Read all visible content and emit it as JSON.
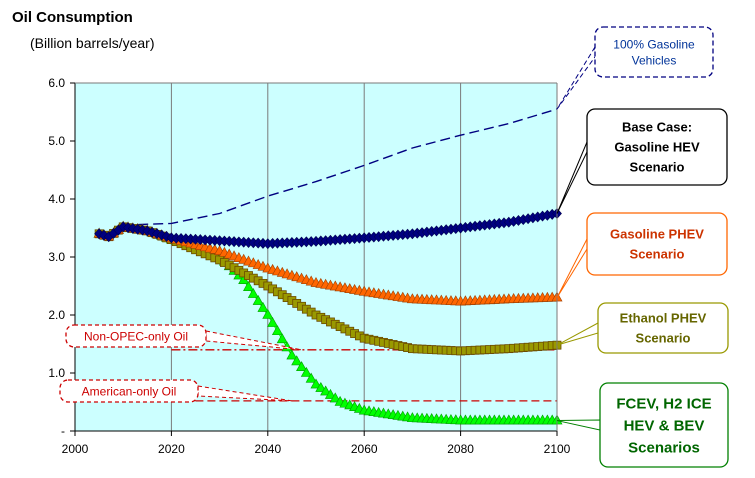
{
  "chart_data": {
    "type": "line",
    "title": "Oil Consumption",
    "subtitle": "(Billion barrels/year)",
    "xlabel": "",
    "ylabel": "",
    "xlim": [
      2000,
      2100
    ],
    "ylim": [
      0,
      6
    ],
    "x_ticks": [
      "2000",
      "2020",
      "2040",
      "2060",
      "2080",
      "2100"
    ],
    "y_ticks": [
      {
        "v": 0,
        "label": "-"
      },
      {
        "v": 1,
        "label": "1.0"
      },
      {
        "v": 2,
        "label": "2.0"
      },
      {
        "v": 3,
        "label": "3.0"
      },
      {
        "v": 4,
        "label": "4.0"
      },
      {
        "v": 5,
        "label": "5.0"
      },
      {
        "v": 6,
        "label": "6.0"
      }
    ],
    "plot_background": "#ccffff",
    "grid": "vertical",
    "series": [
      {
        "id": "gasoline",
        "label_lines": [
          "100% Gasoline",
          "Vehicles"
        ],
        "color": "#000080",
        "style": "dashed",
        "points": [
          [
            2010,
            3.55
          ],
          [
            2020,
            3.58
          ],
          [
            2030,
            3.75
          ],
          [
            2040,
            4.05
          ],
          [
            2050,
            4.3
          ],
          [
            2060,
            4.58
          ],
          [
            2070,
            4.88
          ],
          [
            2080,
            5.1
          ],
          [
            2090,
            5.3
          ],
          [
            2100,
            5.55
          ]
        ]
      },
      {
        "id": "base",
        "label_lines": [
          "Base Case:",
          "Gasoline HEV",
          "Scenario"
        ],
        "color": "#000080",
        "marker": "diamond",
        "points": [
          [
            2005,
            3.4
          ],
          [
            2007,
            3.35
          ],
          [
            2010,
            3.52
          ],
          [
            2015,
            3.45
          ],
          [
            2020,
            3.33
          ],
          [
            2030,
            3.28
          ],
          [
            2040,
            3.23
          ],
          [
            2050,
            3.27
          ],
          [
            2060,
            3.33
          ],
          [
            2070,
            3.4
          ],
          [
            2080,
            3.5
          ],
          [
            2090,
            3.6
          ],
          [
            2100,
            3.75
          ]
        ]
      },
      {
        "id": "phev",
        "label_lines": [
          "Gasoline PHEV",
          "Scenario"
        ],
        "color": "#ff6600",
        "marker": "triangle",
        "points": [
          [
            2005,
            3.4
          ],
          [
            2007,
            3.35
          ],
          [
            2010,
            3.52
          ],
          [
            2015,
            3.45
          ],
          [
            2020,
            3.32
          ],
          [
            2030,
            3.1
          ],
          [
            2040,
            2.8
          ],
          [
            2050,
            2.55
          ],
          [
            2060,
            2.4
          ],
          [
            2070,
            2.27
          ],
          [
            2080,
            2.23
          ],
          [
            2090,
            2.27
          ],
          [
            2100,
            2.3
          ]
        ]
      },
      {
        "id": "ethanol",
        "label_lines": [
          "Ethanol PHEV",
          "Scenario"
        ],
        "color": "#999900",
        "marker": "square",
        "points": [
          [
            2005,
            3.4
          ],
          [
            2007,
            3.35
          ],
          [
            2010,
            3.52
          ],
          [
            2015,
            3.45
          ],
          [
            2020,
            3.3
          ],
          [
            2030,
            2.95
          ],
          [
            2040,
            2.5
          ],
          [
            2050,
            2.0
          ],
          [
            2060,
            1.6
          ],
          [
            2070,
            1.42
          ],
          [
            2080,
            1.38
          ],
          [
            2090,
            1.42
          ],
          [
            2100,
            1.48
          ]
        ]
      },
      {
        "id": "fcev",
        "label_lines": [
          "FCEV, H2 ICE",
          "HEV & BEV",
          "Scenarios"
        ],
        "color": "#00ff00",
        "marker": "triangle",
        "points": [
          [
            2005,
            3.4
          ],
          [
            2007,
            3.35
          ],
          [
            2010,
            3.52
          ],
          [
            2015,
            3.45
          ],
          [
            2020,
            3.3
          ],
          [
            2025,
            3.2
          ],
          [
            2030,
            3.0
          ],
          [
            2035,
            2.6
          ],
          [
            2040,
            2.0
          ],
          [
            2045,
            1.3
          ],
          [
            2050,
            0.8
          ],
          [
            2055,
            0.5
          ],
          [
            2060,
            0.35
          ],
          [
            2070,
            0.22
          ],
          [
            2080,
            0.18
          ],
          [
            2090,
            0.18
          ],
          [
            2100,
            0.18
          ]
        ]
      }
    ],
    "reference_lines": [
      {
        "id": "nonopec",
        "label": "Non-OPEC-only Oil",
        "y": 1.4,
        "color": "#cc0000",
        "style": "dashdot"
      },
      {
        "id": "american",
        "label": "American-only Oil",
        "y": 0.52,
        "color": "#cc0000",
        "style": "dashed"
      }
    ]
  }
}
